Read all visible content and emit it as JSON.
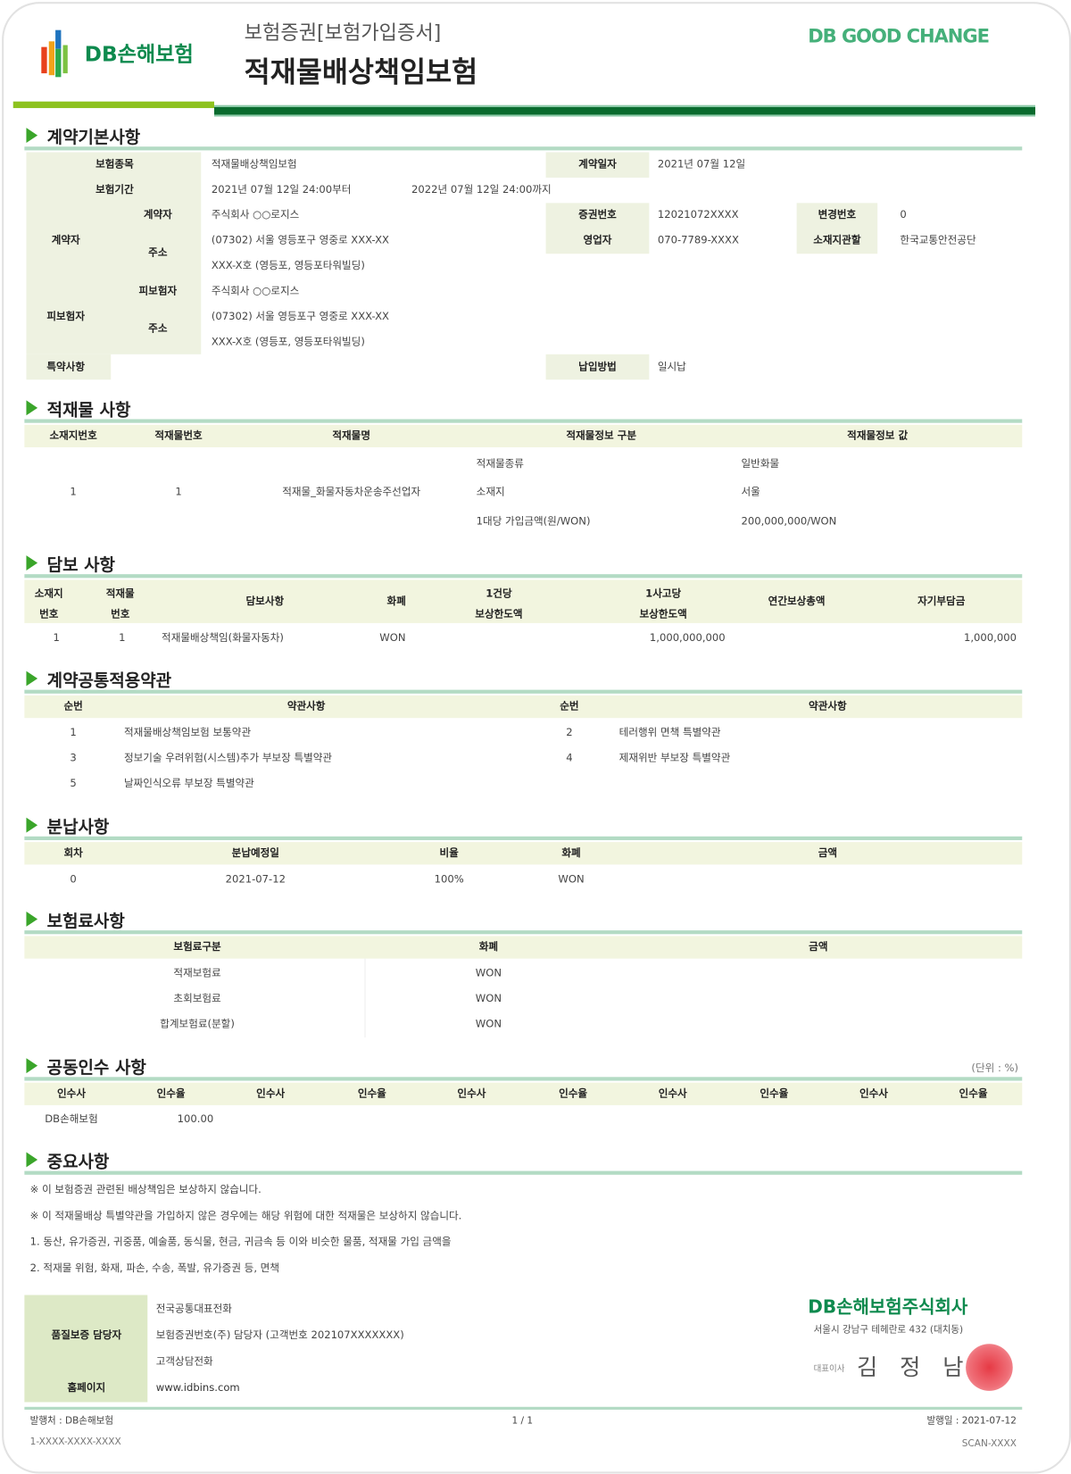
{
  "header": {
    "logo_text": "DB손해보험",
    "subtitle": "보험증권[보험가입증서]",
    "title": "적재물배상책임보험",
    "slogan": "DB GOOD CHANGE",
    "colors": {
      "brand_green": "#0a6b2e",
      "accent_lime": "#8dc21f",
      "section_rule": "#b3dbc4",
      "header_bg": "#f2f5df",
      "seal_red": "#e8404a"
    }
  },
  "contract": {
    "title": "계약기본사항",
    "product_label": "보험종목",
    "product": "적재물배상책임보험",
    "contract_date_label": "계약일자",
    "contract_date": "2021년 07월 12일",
    "period_label": "보험기간",
    "period_from": "2021년 07월 12일 24:00부터",
    "period_to": "2022년 07월 12일 24:00까지",
    "policyholder_group": "계약자",
    "policyholder_label": "계약자",
    "policyholder": "주식회사 ○○로지스",
    "policy_no_label": "증권번호",
    "policy_no": "12021072XXXX",
    "change_no_label": "변경번호",
    "change_no": "0",
    "address_label": "주소",
    "address1": "(07302) 서울 영등포구 영중로 XXX-XX",
    "address2": "XXX-X호 (영등포, 영등포타워빌딩)",
    "agent_label": "영업자",
    "agent": "070-7789-XXXX",
    "jurisdiction_label": "소재지관할",
    "jurisdiction": "한국교통안전공단",
    "insured_group": "피보험자",
    "insured_label": "피보험자",
    "insured": "주식회사 ○○로지스",
    "insured_address_label": "주소",
    "insured_address1": "(07302) 서울 영등포구 영중로 XXX-XX",
    "insured_address2": "XXX-X호 (영등포, 영등포타워빌딩)",
    "special_label": "특약사항",
    "payment_label": "납입방법",
    "payment": "일시납"
  },
  "cargo": {
    "title": "적재물 사항",
    "headers": [
      "소재지번호",
      "적재물번호",
      "적재물명",
      "적재물정보 구분",
      "적재물정보 값"
    ],
    "location_no": "1",
    "cargo_no": "1",
    "cargo_name": "적재물_화물자동차운송주선업자",
    "info": [
      {
        "key": "적재물종류",
        "value": "일반화물"
      },
      {
        "key": "소재지",
        "value": "서울"
      },
      {
        "key": "1대당 가입금액(원/WON)",
        "value": "200,000,000/WON"
      }
    ]
  },
  "coverage": {
    "title": "담보 사항",
    "headers": [
      "소재지\n번호",
      "적재물\n번호",
      "담보사항",
      "화폐",
      "1건당\n보상한도액",
      "1사고당\n보상한도액",
      "연간보상총액",
      "자기부담금"
    ],
    "row": {
      "location_no": "1",
      "cargo_no": "1",
      "item": "적재물배상책임(화물자동차)",
      "currency": "WON",
      "per_case": "",
      "per_accident": "1,000,000,000",
      "annual": "",
      "deductible": "1,000,000"
    }
  },
  "clauses": {
    "title": "계약공통적용약관",
    "headers": [
      "순번",
      "약관사항",
      "순번",
      "약관사항"
    ],
    "items": [
      {
        "no": "1",
        "name": "적재물배상책임보험 보통약관"
      },
      {
        "no": "2",
        "name": "테러행위 면책 특별약관"
      },
      {
        "no": "3",
        "name": "정보기술 우려위험(시스템)추가 부보장 특별약관"
      },
      {
        "no": "4",
        "name": "제재위반 부보장 특별약관"
      },
      {
        "no": "5",
        "name": "날짜인식오류 부보장 특별약관"
      }
    ]
  },
  "installments": {
    "title": "분납사항",
    "headers": [
      "회차",
      "분납예정일",
      "비율",
      "화폐",
      "금액"
    ],
    "row": {
      "no": "0",
      "date": "2021-07-12",
      "ratio": "100%",
      "currency": "WON",
      "amount": ""
    }
  },
  "premium": {
    "title": "보험료사항",
    "headers": [
      "보험료구분",
      "화폐",
      "금액"
    ],
    "rows": [
      {
        "type": "적재보험료",
        "currency": "WON",
        "amount": ""
      },
      {
        "type": "초회보험료",
        "currency": "WON",
        "amount": ""
      },
      {
        "type": "합계보험료(분할)",
        "currency": "WON",
        "amount": ""
      }
    ]
  },
  "coinsurance": {
    "title": "공동인수 사항",
    "unit": "(단위 : %)",
    "headers": [
      "인수사",
      "인수율",
      "인수사",
      "인수율",
      "인수사",
      "인수율",
      "인수사",
      "인수율",
      "인수사",
      "인수율"
    ],
    "row": {
      "company": "DB손해보험",
      "ratio": "100.00"
    }
  },
  "notes": {
    "title": "중요사항",
    "lines": [
      "※ 이 보험증권 관련된 배상책임은 보상하지 않습니다.",
      "※ 이 적재물배상 특별약관을 가입하지 않은 경우에는 해당 위험에 대한 적재물은 보상하지 않습니다.",
      "1. 동산, 유가증권, 귀중품, 예술품, 동식물, 현금, 귀금속 등 이와 비슷한 물품, 적재물 가입 금액을",
      "2. 적재물 위험, 화재, 파손, 수송, 폭발, 유가증권 등, 면책"
    ]
  },
  "footer_box": {
    "quality_label": "품질보증 담당자",
    "homepage_label": "홈페이지",
    "lines": [
      "전국공통대표전화",
      "보험증권번호(주) 담당자 (고객번호 202107XXXXXXX)",
      "고객상담전화",
      "www.idbins.com"
    ]
  },
  "issuer": {
    "company": "DB손해보험주식회사",
    "address": "서울시 강남구 테헤란로 432 (대치동)",
    "ceo_label": "대표이사",
    "ceo_name": "김 정 남",
    "seal_text": "DB손해보험"
  },
  "bottom": {
    "issuer": "발행처 : DB손해보험",
    "page": "1 / 1",
    "issue_date": "발행일 : 2021-07-12",
    "doc_code": "1-XXXX-XXXX-XXXX",
    "scan_code": "SCAN-XXXX"
  }
}
